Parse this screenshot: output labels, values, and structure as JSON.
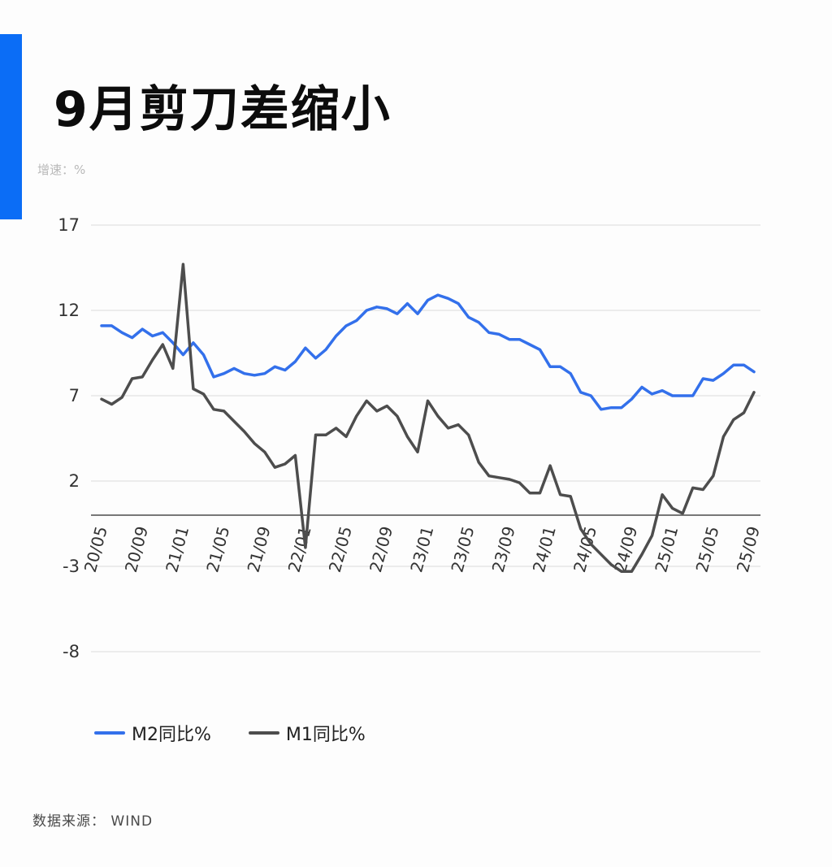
{
  "page": {
    "title": "9月剪刀差缩小",
    "unit_label": "增速：%",
    "source_label": "数据来源：",
    "source_value": "WIND"
  },
  "colors": {
    "accent_bar": "#0b6df6",
    "m2_line": "#3370eb",
    "m1_line": "#4d4d4d",
    "grid": "#dcdcdc",
    "zero_axis": "#777777",
    "tick_text": "#333333"
  },
  "legend": {
    "items": [
      {
        "label": "M2同比%",
        "series_key": "m2_line"
      },
      {
        "label": "M1同比%",
        "series_key": "m1_line"
      }
    ]
  },
  "chart_data": {
    "type": "line",
    "title": "9月剪刀差缩小",
    "xlabel": "",
    "ylabel": "增速：%",
    "ylim": [
      -8,
      17
    ],
    "yticks": [
      17,
      12,
      7,
      2,
      -3,
      -8
    ],
    "grid": true,
    "legend_position": "bottom-left",
    "x_tick_every": 4,
    "x": [
      "20/05",
      "20/06",
      "20/07",
      "20/08",
      "20/09",
      "20/10",
      "20/11",
      "20/12",
      "21/01",
      "21/02",
      "21/03",
      "21/04",
      "21/05",
      "21/06",
      "21/07",
      "21/08",
      "21/09",
      "21/10",
      "21/11",
      "21/12",
      "22/01",
      "22/02",
      "22/03",
      "22/04",
      "22/05",
      "22/06",
      "22/07",
      "22/08",
      "22/09",
      "22/10",
      "22/11",
      "22/12",
      "23/01",
      "23/02",
      "23/03",
      "23/04",
      "23/05",
      "23/06",
      "23/07",
      "23/08",
      "23/09",
      "23/10",
      "23/11",
      "23/12",
      "24/01",
      "24/02",
      "24/03",
      "24/04",
      "24/05",
      "24/06",
      "24/07",
      "24/08",
      "24/09",
      "24/10",
      "24/11",
      "24/12",
      "25/01",
      "25/02",
      "25/03",
      "25/04",
      "25/05",
      "25/06",
      "25/07",
      "25/08",
      "25/09"
    ],
    "series": [
      {
        "name": "M2同比%",
        "values": [
          11.1,
          11.1,
          10.7,
          10.4,
          10.9,
          10.5,
          10.7,
          10.1,
          9.4,
          10.1,
          9.4,
          8.1,
          8.3,
          8.6,
          8.3,
          8.2,
          8.3,
          8.7,
          8.5,
          9.0,
          9.8,
          9.2,
          9.7,
          10.5,
          11.1,
          11.4,
          12.0,
          12.2,
          12.1,
          11.8,
          12.4,
          11.8,
          12.6,
          12.9,
          12.7,
          12.4,
          11.6,
          11.3,
          10.7,
          10.6,
          10.3,
          10.3,
          10.0,
          9.7,
          8.7,
          8.7,
          8.3,
          7.2,
          7.0,
          6.2,
          6.3,
          6.3,
          6.8,
          7.5,
          7.1,
          7.3,
          7.0,
          7.0,
          7.0,
          8.0,
          7.9,
          8.3,
          8.8,
          8.8,
          8.4
        ]
      },
      {
        "name": "M1同比%",
        "values": [
          6.8,
          6.5,
          6.9,
          8.0,
          8.1,
          9.1,
          10.0,
          8.6,
          14.7,
          7.4,
          7.1,
          6.2,
          6.1,
          5.5,
          4.9,
          4.2,
          3.7,
          2.8,
          3.0,
          3.5,
          -1.9,
          4.7,
          4.7,
          5.1,
          4.6,
          5.8,
          6.7,
          6.1,
          6.4,
          5.8,
          4.6,
          3.7,
          6.7,
          5.8,
          5.1,
          5.3,
          4.7,
          3.1,
          2.3,
          2.2,
          2.1,
          1.9,
          1.3,
          1.3,
          2.9,
          1.2,
          1.1,
          -0.8,
          -1.7,
          -2.3,
          -2.9,
          -3.3,
          -3.3,
          -2.3,
          -1.2,
          1.2,
          0.4,
          0.1,
          1.6,
          1.5,
          2.3,
          4.6,
          5.6,
          6.0,
          7.2
        ]
      }
    ]
  }
}
